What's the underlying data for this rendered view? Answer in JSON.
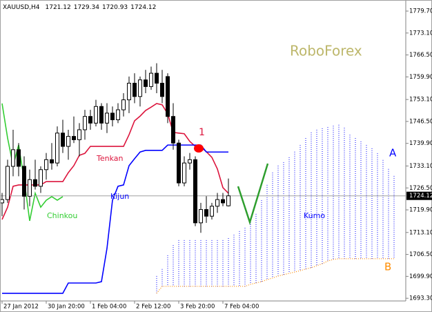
{
  "chart_data": {
    "type": "candlestick",
    "title": "XAUUSD,H4",
    "watermark": "RoboForex",
    "categories": [
      "27 Jan 2012",
      null,
      null,
      null,
      null,
      null,
      null,
      null,
      "30 Jan 20:00",
      null,
      null,
      null,
      null,
      null,
      null,
      null,
      "1 Feb 04:00",
      null,
      null,
      null,
      null,
      null,
      null,
      null,
      "2 Feb 12:00",
      null,
      null,
      null,
      null,
      null,
      null,
      null,
      "3 Feb 20:00",
      null,
      null,
      null,
      null,
      null,
      null,
      null,
      "7 Feb 04:00",
      null,
      null,
      null,
      null,
      null,
      null,
      null,
      null,
      null,
      null,
      null,
      null,
      null,
      null,
      null,
      null,
      null,
      null,
      null,
      null,
      null,
      null,
      null,
      null,
      null,
      null,
      null,
      null,
      null,
      null,
      null
    ],
    "open": [
      1722,
      1723,
      1733,
      1738,
      1733,
      1724,
      1729,
      1727,
      1732,
      1735,
      1734,
      1743,
      1739,
      1742,
      1741,
      1744,
      1748,
      1746,
      1751,
      1746,
      1749,
      1747,
      1750,
      1753,
      1758,
      1754,
      1759,
      1757,
      1761,
      1758,
      1760,
      1748,
      1740,
      1728,
      1734,
      1735,
      1716,
      1720,
      1718,
      1721,
      1723,
      1721.12,
      null,
      null,
      null,
      null,
      null,
      null,
      null,
      null,
      null,
      null,
      null,
      null,
      null,
      null,
      null,
      null,
      null,
      null,
      null,
      null,
      null,
      null,
      null,
      null,
      null,
      null,
      null,
      null,
      null,
      null
    ],
    "high": [
      1725,
      1735,
      1744,
      1740,
      1736,
      1732,
      1735,
      1733,
      1737,
      1740,
      1745,
      1747,
      1744,
      1748,
      1746,
      1750,
      1750,
      1753,
      1752,
      1752,
      1751,
      1752,
      1755,
      1760,
      1761,
      1760,
      1762,
      1763,
      1764,
      1762,
      1761,
      1752,
      1741,
      1736,
      1737,
      1736,
      1722,
      1724,
      1722,
      1725,
      1725,
      1729.34,
      null,
      null,
      null,
      null,
      null,
      null,
      null,
      null,
      null,
      null,
      null,
      null,
      null,
      null,
      null,
      null,
      null,
      null,
      null,
      null,
      null,
      null,
      null,
      null,
      null,
      null,
      null,
      null,
      null,
      null
    ],
    "low": [
      1718,
      1722,
      1730,
      1730,
      1720,
      1721,
      1726,
      1725,
      1729,
      1732,
      1733,
      1737,
      1735,
      1740,
      1736,
      1741,
      1744,
      1745,
      1744,
      1743,
      1745,
      1746,
      1748,
      1749,
      1752,
      1751,
      1755,
      1756,
      1755,
      1752,
      1746,
      1738,
      1727,
      1727,
      1732,
      1715,
      1713,
      1716,
      1717,
      1719,
      1721,
      1720.93,
      null,
      null,
      null,
      null,
      null,
      null,
      null,
      null,
      null,
      null,
      null,
      null,
      null,
      null,
      null,
      null,
      null,
      null,
      null,
      null,
      null,
      null,
      null,
      null,
      null,
      null,
      null,
      null,
      null,
      null
    ],
    "close": [
      1723,
      1733,
      1738,
      1733,
      1724,
      1729,
      1727,
      1732,
      1735,
      1734,
      1743,
      1739,
      1742,
      1741,
      1744,
      1748,
      1746,
      1751,
      1746,
      1749,
      1747,
      1750,
      1753,
      1758,
      1754,
      1759,
      1757,
      1761,
      1758,
      1754,
      1748,
      1740,
      1728,
      1734,
      1735,
      1716,
      1720,
      1718,
      1721,
      1723,
      1722,
      1724.12,
      null,
      null,
      null,
      null,
      null,
      null,
      null,
      null,
      null,
      null,
      null,
      null,
      null,
      null,
      null,
      null,
      null,
      null,
      null,
      null,
      null,
      null,
      null,
      null,
      null,
      null,
      null,
      null,
      null,
      null
    ],
    "up_color": "#ffffff",
    "down_color": "#000000",
    "lines": [
      {
        "name": "Tenkan",
        "color": "#dc143c",
        "values": [
          1717.0,
          1720.7,
          1727.0,
          1727.4,
          1727.4,
          1727.4,
          1727.4,
          1727.4,
          1728.4,
          1728.4,
          1728.4,
          1728.4,
          1731.1,
          1733.2,
          1736.3,
          1736.9,
          1739.0,
          1739.0,
          1739.0,
          1739.0,
          1739.0,
          1739.0,
          1739.0,
          1742.5,
          1746.7,
          1748.1,
          1749.8,
          1750.8,
          1751.9,
          1751.5,
          1748.8,
          1743.2,
          1743.0,
          1742.8,
          1740.5,
          1739.0,
          1738.8,
          1737.4,
          1735.7,
          1732.2,
          1726.6,
          1724.9,
          null,
          null,
          null,
          null,
          null,
          null,
          null,
          null,
          null,
          null,
          null,
          null,
          null,
          null,
          null,
          null,
          null,
          null,
          null,
          null,
          null,
          null,
          null,
          null,
          null,
          null,
          null,
          null,
          null,
          null
        ]
      },
      {
        "name": "Kijun",
        "color": "#0000ff",
        "values": [
          1694.8,
          1694.8,
          1694.8,
          1694.8,
          1694.8,
          1694.8,
          1694.8,
          1694.8,
          1694.8,
          1694.8,
          1694.8,
          1694.8,
          1697.9,
          1697.9,
          1697.9,
          1697.9,
          1697.9,
          1697.9,
          1698.3,
          1708.3,
          1722.8,
          1727.0,
          1727.4,
          1733.2,
          1735.3,
          1737.3,
          1737.8,
          1737.8,
          1737.8,
          1737.8,
          1739.4,
          1739.4,
          1739.4,
          1739.4,
          1739.4,
          1739.4,
          1739.4,
          1737.3,
          1737.3,
          1737.3,
          1737.3,
          1737.3,
          null,
          null,
          null,
          null,
          null,
          null,
          null,
          null,
          null,
          null,
          null,
          null,
          null,
          null,
          null,
          null,
          null,
          null,
          null,
          null,
          null,
          null,
          null,
          null,
          null,
          null,
          null,
          null,
          null,
          null
        ]
      },
      {
        "name": "Chinkou",
        "color": "#32cd32",
        "values": [
          1751.9,
          1741.5,
          1733.2,
          1739.4,
          1729.0,
          1716.6,
          1724.9,
          1720.7,
          1722.8,
          1723.9,
          1722.8,
          1723.9,
          null,
          null,
          null,
          null,
          null,
          null,
          null,
          null,
          null,
          null,
          null,
          null,
          null,
          null,
          null,
          null,
          null,
          null,
          null,
          null,
          null,
          null,
          null,
          null,
          null,
          null,
          null,
          null,
          null,
          null,
          null,
          null,
          null,
          null,
          null,
          null,
          null,
          null,
          null,
          null,
          null,
          null,
          null,
          null,
          null,
          null,
          null,
          null,
          null,
          null,
          null,
          null,
          null,
          null,
          null,
          null,
          null,
          null,
          null,
          null
        ]
      }
    ],
    "cloud": {
      "name": "Kumo",
      "color": "#0000ff",
      "span_a": {
        "name": "A",
        "color": "#0000ff",
        "values": [
          null,
          null,
          null,
          null,
          null,
          null,
          null,
          null,
          null,
          null,
          null,
          null,
          null,
          null,
          null,
          null,
          null,
          null,
          null,
          null,
          null,
          null,
          null,
          null,
          null,
          null,
          null,
          null,
          1700.0,
          1702.1,
          1706.2,
          1709.3,
          1710.8,
          1710.8,
          1710.8,
          1710.8,
          1710.8,
          1710.8,
          1710.8,
          1710.8,
          1710.8,
          1711.4,
          1712.4,
          1713.5,
          1714.5,
          1716.2,
          1718.7,
          1722.8,
          1727.4,
          1731.1,
          1733.2,
          1734.2,
          1735.7,
          1737.4,
          1739.4,
          1741.5,
          1743.2,
          1744.0,
          1744.4,
          1744.8,
          1745.2,
          1745.5,
          1744.6,
          1742.5,
          1741.5,
          1740.5,
          1739.4,
          1738.4,
          1736.9,
          1734.9,
          1732.2,
          1730.1
        ]
      },
      "span_b": {
        "name": "B",
        "color": "#ff8c00",
        "values": [
          null,
          null,
          null,
          null,
          null,
          null,
          null,
          null,
          null,
          null,
          null,
          null,
          null,
          null,
          null,
          null,
          null,
          null,
          null,
          null,
          null,
          null,
          null,
          null,
          null,
          null,
          null,
          null,
          1694.8,
          1696.9,
          1696.9,
          1696.9,
          1696.9,
          1696.9,
          1696.9,
          1696.9,
          1696.9,
          1696.9,
          1696.9,
          1696.9,
          1696.9,
          1696.9,
          1696.9,
          1696.9,
          1696.9,
          1697.5,
          1697.9,
          1698.3,
          1698.9,
          1699.4,
          1700.0,
          1700.4,
          1700.8,
          1701.2,
          1701.6,
          1702.1,
          1702.5,
          1703.1,
          1703.7,
          1704.5,
          1705.0,
          1705.2,
          1705.2,
          1705.2,
          1705.2,
          1705.2,
          1705.2,
          1705.2,
          1705.2,
          1705.2,
          1705.2,
          1705.2
        ]
      }
    },
    "annotations": [
      "1"
    ],
    "ylim": [
      1692.5,
      1782.2
    ],
    "yticks": [
      {
        "value": 1779.7,
        "label": "1779.70"
      },
      {
        "value": 1773.1,
        "label": "1773.10"
      },
      {
        "value": 1766.5,
        "label": "1766.50"
      },
      {
        "value": 1759.9,
        "label": "1759.90"
      },
      {
        "value": 1753.1,
        "label": "1753.10"
      },
      {
        "value": 1746.5,
        "label": "1746.50"
      },
      {
        "value": 1739.9,
        "label": "1739.90"
      },
      {
        "value": 1733.1,
        "label": "1733.10"
      },
      {
        "value": 1726.5,
        "label": "1726.50"
      },
      {
        "value": 1719.9,
        "label": "1719.90"
      },
      {
        "value": 1713.1,
        "label": "1713.10"
      },
      {
        "value": 1706.5,
        "label": "1706.50"
      },
      {
        "value": 1699.9,
        "label": "1699.90"
      },
      {
        "value": 1693.3,
        "label": "1693.30"
      }
    ],
    "grid": false
  }
}
